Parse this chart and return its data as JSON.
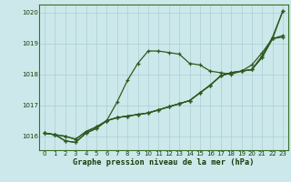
{
  "title": "Graphe pression niveau de la mer (hPa)",
  "bg_color": "#cce8ea",
  "grid_color": "#aacfd4",
  "line_color": "#2d5a1e",
  "xlim": [
    -0.5,
    23.5
  ],
  "ylim": [
    1015.55,
    1020.25
  ],
  "yticks": [
    1016,
    1017,
    1018,
    1019,
    1020
  ],
  "xticks": [
    0,
    1,
    2,
    3,
    4,
    5,
    6,
    7,
    8,
    9,
    10,
    11,
    12,
    13,
    14,
    15,
    16,
    17,
    18,
    19,
    20,
    21,
    22,
    23
  ],
  "series": [
    [
      1016.1,
      1016.05,
      1016.0,
      1015.9,
      1016.15,
      1016.3,
      1016.5,
      1016.6,
      1016.65,
      1016.7,
      1016.75,
      1016.85,
      1016.95,
      1017.05,
      1017.15,
      1017.4,
      1017.65,
      1017.95,
      1018.05,
      1018.1,
      1018.15,
      1018.55,
      1019.15,
      1019.25
    ],
    [
      1016.1,
      1016.05,
      1016.0,
      1015.9,
      1016.15,
      1016.3,
      1016.5,
      1016.6,
      1016.65,
      1016.7,
      1016.75,
      1016.85,
      1016.95,
      1017.05,
      1017.15,
      1017.4,
      1017.65,
      1017.95,
      1018.05,
      1018.1,
      1018.15,
      1018.55,
      1019.15,
      1020.05
    ],
    [
      1016.1,
      1016.05,
      1015.85,
      1015.8,
      1016.1,
      1016.25,
      1016.5,
      1017.1,
      1017.8,
      1018.35,
      1018.75,
      1018.75,
      1018.7,
      1018.65,
      1018.35,
      1018.3,
      1018.1,
      1018.05,
      1018.0,
      1018.1,
      1018.3,
      1018.7,
      1019.15,
      1019.2
    ],
    [
      1016.1,
      1016.05,
      1015.85,
      1015.8,
      1016.1,
      1016.25,
      1016.5,
      1016.6,
      1016.65,
      1016.7,
      1016.75,
      1016.85,
      1016.95,
      1017.05,
      1017.15,
      1017.4,
      1017.65,
      1017.95,
      1018.05,
      1018.1,
      1018.15,
      1018.6,
      1019.2,
      1020.05
    ]
  ],
  "marker": "+",
  "marker_size": 3.5,
  "line_width": 0.9,
  "tick_fontsize": 5.0,
  "xlabel_fontsize": 6.2,
  "spine_color": "#3a6e28"
}
